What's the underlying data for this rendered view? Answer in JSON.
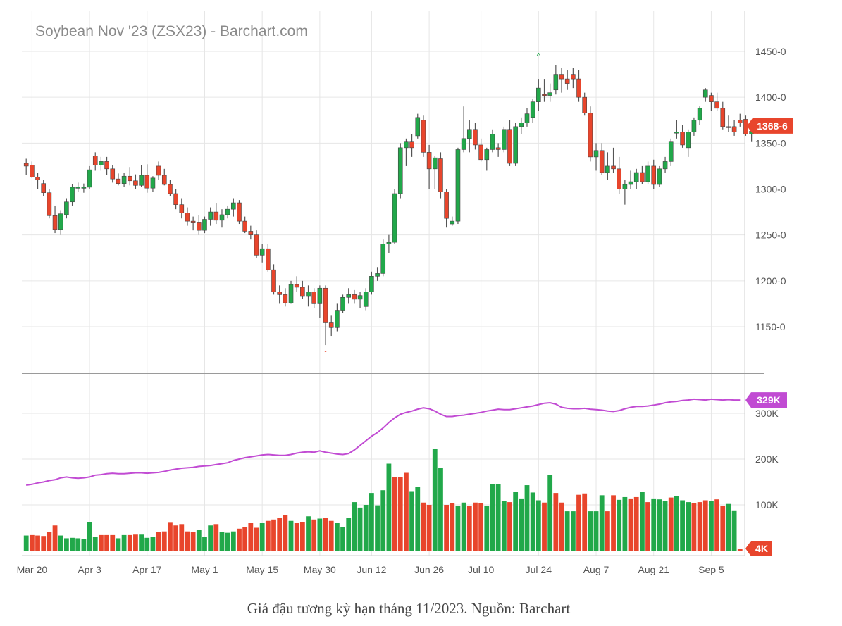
{
  "caption": "Giá đậu tương kỳ hạn tháng 11/2023. Nguồn: Barchart",
  "chart_data": [
    {
      "type": "candlestick",
      "title": "Soybean Nov '23 (ZSX23) - Barchart.com",
      "ylim": [
        1100,
        1470
      ],
      "yticks": [
        1150,
        1200,
        1250,
        1300,
        1350,
        1400,
        1450
      ],
      "ytick_labels": [
        "1150-0",
        "1200-0",
        "1250-0",
        "1300-0",
        "1350-0",
        "1400-0",
        "1450-0"
      ],
      "last_price_label": "1368-6",
      "last_price": 1368.75,
      "grid": true,
      "colors": {
        "up": "#21a84a",
        "down": "#e8452c",
        "badge": "#e8452c",
        "grid": "#e6e6e6"
      },
      "x_labels": [
        "Mar 20",
        "Apr 3",
        "Apr 17",
        "May 1",
        "May 15",
        "May 30",
        "Jun 12",
        "Jun 26",
        "Jul 10",
        "Jul 24",
        "Aug 7",
        "Aug 21",
        "Sep 5"
      ],
      "x_label_index": [
        1,
        11,
        21,
        31,
        41,
        51,
        60,
        70,
        79,
        89,
        99,
        109,
        119
      ],
      "high_marker": {
        "index": 89,
        "value": 1438
      },
      "low_marker": {
        "index": 52,
        "value": 1128
      },
      "ohlc": [
        [
          1328,
          1333,
          1315,
          1325
        ],
        [
          1326,
          1330,
          1312,
          1313
        ],
        [
          1313,
          1318,
          1300,
          1310
        ],
        [
          1306,
          1310,
          1292,
          1296
        ],
        [
          1296,
          1300,
          1268,
          1271
        ],
        [
          1271,
          1282,
          1252,
          1256
        ],
        [
          1256,
          1277,
          1250,
          1273
        ],
        [
          1272,
          1290,
          1268,
          1286
        ],
        [
          1286,
          1305,
          1282,
          1302
        ],
        [
          1302,
          1307,
          1297,
          1302
        ],
        [
          1302,
          1306,
          1296,
          1302
        ],
        [
          1302,
          1325,
          1300,
          1321
        ],
        [
          1336,
          1340,
          1320,
          1326
        ],
        [
          1326,
          1335,
          1320,
          1330
        ],
        [
          1330,
          1335,
          1315,
          1322
        ],
        [
          1322,
          1326,
          1307,
          1311
        ],
        [
          1311,
          1317,
          1304,
          1306
        ],
        [
          1306,
          1318,
          1302,
          1314
        ],
        [
          1314,
          1324,
          1304,
          1309
        ],
        [
          1309,
          1316,
          1300,
          1304
        ],
        [
          1304,
          1326,
          1302,
          1315
        ],
        [
          1315,
          1327,
          1296,
          1301
        ],
        [
          1301,
          1314,
          1297,
          1312
        ],
        [
          1325,
          1330,
          1310,
          1315
        ],
        [
          1315,
          1322,
          1304,
          1305
        ],
        [
          1305,
          1310,
          1292,
          1295
        ],
        [
          1295,
          1300,
          1278,
          1283
        ],
        [
          1283,
          1290,
          1268,
          1274
        ],
        [
          1274,
          1280,
          1260,
          1265
        ],
        [
          1265,
          1270,
          1255,
          1264
        ],
        [
          1264,
          1272,
          1250,
          1255
        ],
        [
          1255,
          1270,
          1252,
          1267
        ],
        [
          1267,
          1280,
          1260,
          1275
        ],
        [
          1275,
          1285,
          1262,
          1266
        ],
        [
          1266,
          1278,
          1258,
          1272
        ],
        [
          1272,
          1282,
          1268,
          1278
        ],
        [
          1278,
          1290,
          1270,
          1285
        ],
        [
          1285,
          1288,
          1262,
          1265
        ],
        [
          1265,
          1270,
          1252,
          1254
        ],
        [
          1254,
          1260,
          1245,
          1250
        ],
        [
          1250,
          1255,
          1225,
          1228
        ],
        [
          1228,
          1240,
          1220,
          1235
        ],
        [
          1235,
          1240,
          1210,
          1212
        ],
        [
          1212,
          1218,
          1185,
          1188
        ],
        [
          1188,
          1195,
          1175,
          1185
        ],
        [
          1185,
          1192,
          1172,
          1176
        ],
        [
          1176,
          1200,
          1175,
          1196
        ],
        [
          1196,
          1205,
          1188,
          1193
        ],
        [
          1193,
          1200,
          1180,
          1183
        ],
        [
          1183,
          1195,
          1172,
          1188
        ],
        [
          1188,
          1192,
          1170,
          1175
        ],
        [
          1175,
          1195,
          1160,
          1192
        ],
        [
          1192,
          1195,
          1130,
          1155
        ],
        [
          1155,
          1162,
          1140,
          1149
        ],
        [
          1149,
          1175,
          1145,
          1168
        ],
        [
          1168,
          1185,
          1165,
          1182
        ],
        [
          1182,
          1192,
          1175,
          1185
        ],
        [
          1185,
          1190,
          1175,
          1180
        ],
        [
          1180,
          1188,
          1170,
          1184
        ],
        [
          1172,
          1192,
          1168,
          1188
        ],
        [
          1188,
          1210,
          1185,
          1205
        ],
        [
          1205,
          1215,
          1200,
          1208
        ],
        [
          1208,
          1245,
          1205,
          1240
        ],
        [
          1240,
          1250,
          1230,
          1242
        ],
        [
          1242,
          1300,
          1240,
          1295
        ],
        [
          1295,
          1350,
          1290,
          1345
        ],
        [
          1345,
          1355,
          1325,
          1352
        ],
        [
          1352,
          1360,
          1335,
          1345
        ],
        [
          1358,
          1382,
          1355,
          1378
        ],
        [
          1375,
          1380,
          1335,
          1340
        ],
        [
          1340,
          1348,
          1300,
          1322
        ],
        [
          1322,
          1336,
          1300,
          1334
        ],
        [
          1333,
          1340,
          1290,
          1297
        ],
        [
          1297,
          1300,
          1258,
          1268
        ],
        [
          1262,
          1270,
          1260,
          1265
        ],
        [
          1265,
          1345,
          1262,
          1343
        ],
        [
          1343,
          1390,
          1340,
          1355
        ],
        [
          1355,
          1375,
          1340,
          1365
        ],
        [
          1365,
          1372,
          1343,
          1348
        ],
        [
          1348,
          1355,
          1330,
          1332
        ],
        [
          1332,
          1345,
          1320,
          1343
        ],
        [
          1343,
          1365,
          1340,
          1360
        ],
        [
          1345,
          1350,
          1335,
          1343
        ],
        [
          1343,
          1368,
          1340,
          1365
        ],
        [
          1365,
          1375,
          1325,
          1328
        ],
        [
          1328,
          1372,
          1325,
          1368
        ],
        [
          1368,
          1378,
          1360,
          1372
        ],
        [
          1372,
          1388,
          1368,
          1382
        ],
        [
          1378,
          1398,
          1372,
          1395
        ],
        [
          1395,
          1420,
          1385,
          1410
        ],
        [
          1403,
          1420,
          1395,
          1402
        ],
        [
          1402,
          1415,
          1395,
          1405
        ],
        [
          1408,
          1435,
          1403,
          1425
        ],
        [
          1425,
          1432,
          1405,
          1420
        ],
        [
          1420,
          1430,
          1408,
          1415
        ],
        [
          1425,
          1432,
          1410,
          1420
        ],
        [
          1420,
          1430,
          1395,
          1400
        ],
        [
          1400,
          1405,
          1380,
          1383
        ],
        [
          1383,
          1390,
          1330,
          1335
        ],
        [
          1335,
          1350,
          1320,
          1342
        ],
        [
          1342,
          1350,
          1315,
          1318
        ],
        [
          1318,
          1340,
          1310,
          1325
        ],
        [
          1325,
          1345,
          1318,
          1322
        ],
        [
          1322,
          1335,
          1295,
          1300
        ],
        [
          1300,
          1310,
          1283,
          1305
        ],
        [
          1305,
          1320,
          1300,
          1308
        ],
        [
          1308,
          1322,
          1300,
          1318
        ],
        [
          1318,
          1325,
          1305,
          1308
        ],
        [
          1308,
          1330,
          1305,
          1325
        ],
        [
          1325,
          1332,
          1300,
          1305
        ],
        [
          1305,
          1325,
          1302,
          1322
        ],
        [
          1322,
          1335,
          1318,
          1330
        ],
        [
          1330,
          1355,
          1325,
          1352
        ],
        [
          1362,
          1375,
          1355,
          1362
        ],
        [
          1362,
          1370,
          1345,
          1348
        ],
        [
          1345,
          1365,
          1335,
          1362
        ],
        [
          1362,
          1378,
          1358,
          1375
        ],
        [
          1375,
          1390,
          1370,
          1388
        ],
        [
          1400,
          1410,
          1395,
          1408
        ],
        [
          1402,
          1405,
          1385,
          1395
        ],
        [
          1395,
          1405,
          1385,
          1388
        ],
        [
          1388,
          1395,
          1365,
          1368
        ],
        [
          1368,
          1380,
          1362,
          1367
        ],
        [
          1368,
          1375,
          1358,
          1362
        ],
        [
          1375,
          1382,
          1368,
          1372
        ],
        [
          1376,
          1380,
          1358,
          1360
        ],
        [
          1360,
          1370,
          1352,
          1363
        ],
        [
          1363,
          1372,
          1360,
          1370
        ],
        [
          1368,
          1372,
          1366,
          1368
        ]
      ]
    },
    {
      "type": "bar",
      "title": "",
      "ylim": [
        0,
        350
      ],
      "yticks": [
        100,
        200,
        300
      ],
      "ytick_labels": [
        "100K",
        "200K",
        "300K"
      ],
      "units": "thousand contracts",
      "volume_badge_label": "4K",
      "volume_last": 4,
      "oi_badge_label": "329K",
      "oi_last": 329,
      "colors": {
        "up": "#21a84a",
        "down": "#e8452c",
        "open_interest": "#c14bd3"
      },
      "series": [
        {
          "role": "volume",
          "values": [
            33,
            34,
            33,
            32,
            40,
            55,
            33,
            27,
            28,
            27,
            26,
            62,
            30,
            34,
            34,
            34,
            27,
            34,
            34,
            35,
            35,
            28,
            30,
            41,
            42,
            61,
            55,
            58,
            42,
            41,
            45,
            30,
            55,
            58,
            40,
            39,
            42,
            48,
            52,
            60,
            50,
            60,
            65,
            68,
            72,
            78,
            65,
            60,
            62,
            75,
            68,
            70,
            72,
            65,
            60,
            52,
            72,
            106,
            94,
            100,
            126,
            99,
            132,
            190,
            160,
            160,
            170,
            130,
            140,
            105,
            100,
            222,
            181,
            100,
            104,
            98,
            105,
            97,
            105,
            104,
            98,
            146,
            146,
            109,
            106,
            128,
            114,
            143,
            127,
            110,
            105,
            165,
            126,
            105,
            86,
            86,
            122,
            125,
            86,
            86,
            121,
            86,
            121,
            111,
            117,
            114,
            117,
            128,
            106,
            114,
            112,
            109,
            116,
            119,
            110,
            106,
            104,
            106,
            110,
            108,
            112,
            98,
            102,
            88,
            4
          ],
          "up": [
            1,
            0,
            0,
            0,
            0,
            0,
            1,
            1,
            1,
            1,
            1,
            1,
            1,
            0,
            0,
            0,
            1,
            1,
            0,
            0,
            1,
            1,
            1,
            0,
            0,
            0,
            0,
            0,
            0,
            0,
            1,
            1,
            1,
            0,
            1,
            1,
            1,
            0,
            0,
            0,
            0,
            1,
            0,
            0,
            0,
            0,
            1,
            0,
            0,
            1,
            0,
            1,
            0,
            0,
            1,
            1,
            1,
            1,
            1,
            1,
            1,
            1,
            1,
            1,
            0,
            0,
            0,
            1,
            1,
            0,
            0,
            1,
            1,
            0,
            0,
            1,
            1,
            0,
            0,
            0,
            1,
            1,
            1,
            1,
            0,
            1,
            1,
            1,
            1,
            1,
            0,
            1,
            0,
            0,
            1,
            1,
            0,
            0,
            1,
            1,
            1,
            0,
            0,
            1,
            1,
            0,
            0,
            1,
            0,
            1,
            1,
            1,
            0,
            1,
            1,
            1,
            0,
            0,
            0,
            1,
            0,
            0,
            1,
            1,
            0
          ]
        },
        {
          "role": "open_interest",
          "values": [
            143,
            145,
            148,
            150,
            153,
            155,
            159,
            161,
            159,
            158,
            159,
            161,
            165,
            166,
            168,
            169,
            168,
            168,
            169,
            170,
            170,
            169,
            170,
            171,
            173,
            176,
            178,
            180,
            181,
            182,
            184,
            185,
            186,
            188,
            190,
            192,
            197,
            200,
            203,
            205,
            207,
            209,
            210,
            209,
            208,
            208,
            210,
            213,
            215,
            216,
            215,
            218,
            215,
            213,
            211,
            210,
            212,
            220,
            230,
            240,
            250,
            258,
            268,
            280,
            290,
            298,
            302,
            305,
            309,
            312,
            310,
            305,
            298,
            293,
            293,
            295,
            296,
            298,
            300,
            302,
            305,
            307,
            309,
            308,
            308,
            310,
            312,
            314,
            316,
            319,
            322,
            323,
            320,
            313,
            311,
            310,
            310,
            311,
            309,
            308,
            307,
            305,
            304,
            306,
            310,
            313,
            315,
            315,
            316,
            318,
            320,
            323,
            325,
            326,
            328,
            329,
            331,
            330,
            329,
            331,
            330,
            329,
            330,
            329,
            329
          ]
        }
      ]
    }
  ]
}
